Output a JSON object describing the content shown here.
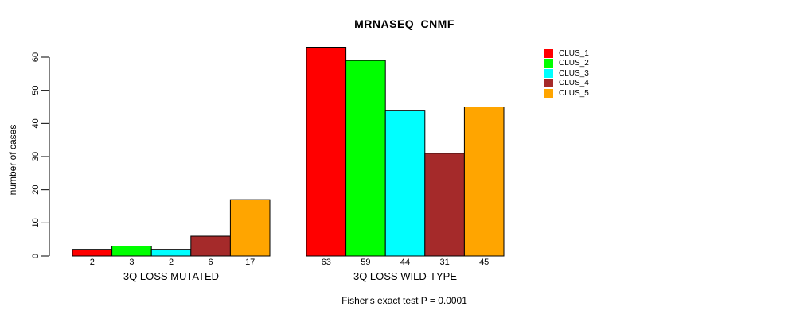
{
  "title": "MRNASEQ_CNMF",
  "footer": "Fisher's exact test P = 0.0001",
  "chart_data": {
    "type": "bar",
    "title": "MRNASEQ_CNMF",
    "xlabel": "",
    "ylabel": "number of cases",
    "ylim": [
      0,
      60
    ],
    "yticks": [
      0,
      10,
      20,
      30,
      40,
      50,
      60
    ],
    "grid": false,
    "legend_position": "right",
    "categories": [
      "3Q LOSS MUTATED",
      "3Q LOSS WILD-TYPE"
    ],
    "series": [
      {
        "name": "CLUS_1",
        "color": "#FF0000",
        "values": [
          2,
          63
        ]
      },
      {
        "name": "CLUS_2",
        "color": "#00FF00",
        "values": [
          3,
          59
        ]
      },
      {
        "name": "CLUS_3",
        "color": "#00FFFF",
        "values": [
          2,
          44
        ]
      },
      {
        "name": "CLUS_4",
        "color": "#A52A2A",
        "values": [
          6,
          31
        ]
      },
      {
        "name": "CLUS_5",
        "color": "#FFA500",
        "values": [
          17,
          45
        ]
      }
    ],
    "bar_value_labels": [
      [
        2,
        3,
        2,
        6,
        17
      ],
      [
        63,
        59,
        44,
        31,
        45
      ]
    ],
    "annotation": "Fisher's exact test P = 0.0001",
    "bar_outline_color": "#000000"
  }
}
